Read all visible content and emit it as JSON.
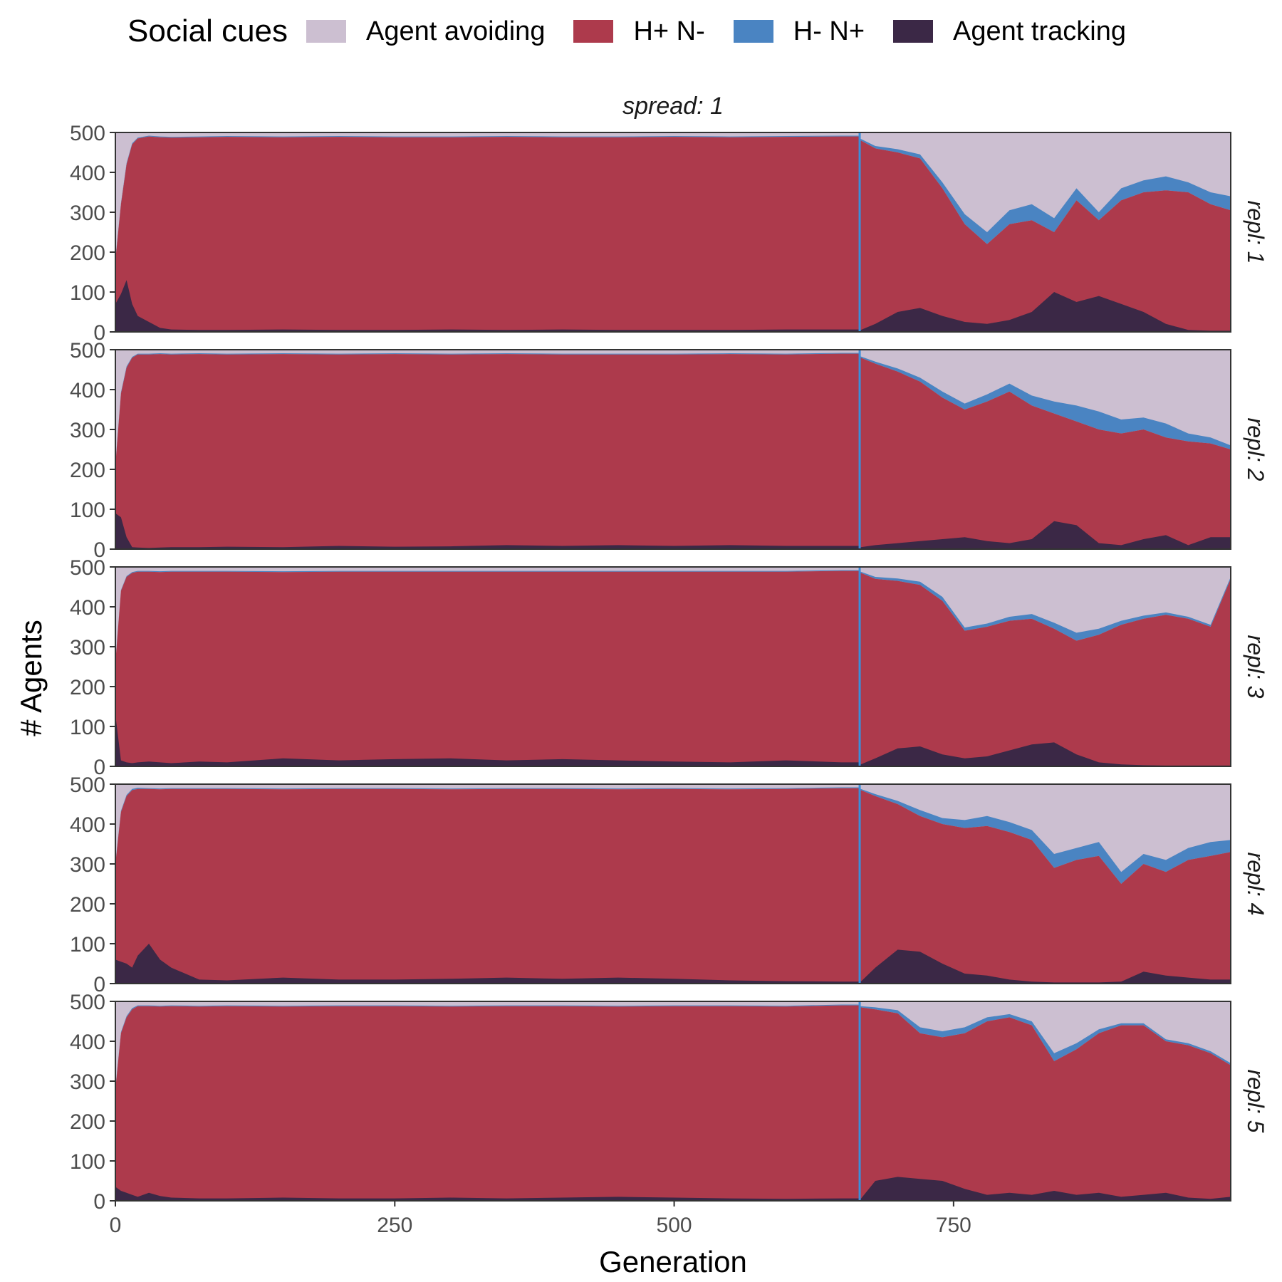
{
  "legend": {
    "title": "Social cues",
    "items": [
      {
        "label": "Agent avoiding",
        "color": "#ccbfd1"
      },
      {
        "label": "H+ N-",
        "color": "#ad3a4c"
      },
      {
        "label": "H- N+",
        "color": "#4a84c2"
      },
      {
        "label": "Agent tracking",
        "color": "#3b2846"
      }
    ]
  },
  "chart_data": {
    "type": "area",
    "stacked": true,
    "facet_title": "spread: 1",
    "xlabel": "Generation",
    "ylabel": "# Agents",
    "xlim": [
      0,
      998
    ],
    "ylim": [
      0,
      500
    ],
    "x_ticks": [
      0,
      250,
      500,
      750
    ],
    "y_ticks": [
      0,
      100,
      200,
      300,
      400,
      500
    ],
    "vline_x": 666,
    "vline_color": "#3b8fd9",
    "series_order": [
      "Agent tracking",
      "H- N+",
      "H+ N-",
      "Agent avoiding"
    ],
    "colors": {
      "Agent avoiding": "#ccbfd1",
      "H+ N-": "#ad3a4c",
      "H- N+": "#4a84c2",
      "Agent tracking": "#3b2846"
    },
    "panels": [
      {
        "label": "repl: 1",
        "x": [
          0,
          5,
          10,
          15,
          20,
          30,
          40,
          50,
          75,
          100,
          150,
          200,
          250,
          300,
          350,
          400,
          450,
          500,
          550,
          600,
          650,
          665,
          667,
          680,
          700,
          720,
          740,
          760,
          780,
          800,
          820,
          840,
          860,
          880,
          900,
          920,
          940,
          960,
          980,
          998
        ],
        "tracking": [
          70,
          95,
          130,
          70,
          40,
          25,
          10,
          6,
          5,
          5,
          6,
          5,
          5,
          6,
          5,
          6,
          5,
          5,
          5,
          6,
          6,
          6,
          5,
          20,
          50,
          60,
          40,
          25,
          20,
          30,
          50,
          100,
          75,
          90,
          70,
          50,
          20,
          5,
          3,
          3
        ],
        "hn": [
          180,
          320,
          420,
          470,
          485,
          490,
          488,
          487,
          488,
          489,
          488,
          489,
          488,
          488,
          489,
          488,
          488,
          489,
          488,
          489,
          490,
          490,
          480,
          460,
          450,
          435,
          360,
          270,
          220,
          270,
          280,
          250,
          330,
          280,
          330,
          350,
          355,
          350,
          320,
          305
        ],
        "hmnp": [
          3,
          3,
          3,
          3,
          2,
          2,
          2,
          2,
          2,
          2,
          2,
          2,
          2,
          2,
          2,
          2,
          2,
          2,
          2,
          2,
          2,
          2,
          4,
          6,
          8,
          10,
          15,
          25,
          30,
          35,
          40,
          35,
          30,
          20,
          30,
          30,
          35,
          25,
          30,
          35
        ]
      },
      {
        "label": "repl: 2",
        "x": [
          0,
          5,
          10,
          15,
          20,
          30,
          40,
          50,
          75,
          100,
          150,
          200,
          250,
          300,
          350,
          400,
          450,
          500,
          550,
          600,
          650,
          665,
          667,
          680,
          700,
          720,
          740,
          760,
          780,
          800,
          820,
          840,
          860,
          880,
          900,
          920,
          940,
          960,
          980,
          998
        ],
        "tracking": [
          90,
          80,
          30,
          5,
          4,
          3,
          4,
          5,
          5,
          6,
          5,
          8,
          6,
          7,
          10,
          8,
          10,
          8,
          10,
          8,
          8,
          8,
          5,
          10,
          15,
          20,
          25,
          30,
          20,
          15,
          25,
          70,
          60,
          15,
          10,
          25,
          35,
          10,
          30,
          30
        ],
        "hn": [
          210,
          390,
          455,
          480,
          488,
          488,
          489,
          488,
          489,
          488,
          489,
          488,
          489,
          488,
          489,
          488,
          488,
          488,
          489,
          488,
          490,
          490,
          480,
          465,
          445,
          420,
          380,
          350,
          370,
          395,
          360,
          340,
          320,
          300,
          290,
          300,
          280,
          270,
          265,
          250
        ],
        "hmnp": [
          3,
          3,
          3,
          2,
          2,
          2,
          2,
          2,
          2,
          2,
          2,
          2,
          2,
          2,
          2,
          2,
          2,
          2,
          2,
          2,
          2,
          2,
          3,
          5,
          8,
          10,
          15,
          15,
          18,
          20,
          25,
          30,
          40,
          45,
          35,
          30,
          35,
          20,
          15,
          10
        ]
      },
      {
        "label": "repl: 3",
        "x": [
          0,
          5,
          10,
          15,
          20,
          30,
          40,
          50,
          75,
          100,
          150,
          200,
          250,
          300,
          350,
          400,
          450,
          500,
          550,
          600,
          650,
          665,
          667,
          680,
          700,
          720,
          740,
          760,
          780,
          800,
          820,
          840,
          860,
          880,
          900,
          920,
          940,
          960,
          980,
          998
        ],
        "tracking": [
          130,
          15,
          10,
          8,
          10,
          12,
          10,
          8,
          12,
          10,
          20,
          15,
          18,
          20,
          15,
          18,
          15,
          12,
          10,
          15,
          10,
          10,
          5,
          20,
          45,
          50,
          30,
          20,
          25,
          40,
          55,
          60,
          30,
          10,
          5,
          3,
          2,
          2,
          2,
          2
        ],
        "hn": [
          260,
          440,
          475,
          485,
          488,
          488,
          487,
          488,
          488,
          488,
          487,
          488,
          488,
          488,
          488,
          488,
          488,
          488,
          488,
          488,
          490,
          490,
          485,
          470,
          465,
          455,
          415,
          340,
          350,
          365,
          370,
          345,
          315,
          330,
          355,
          370,
          380,
          370,
          350,
          470
        ],
        "hmnp": [
          2,
          2,
          2,
          2,
          2,
          2,
          2,
          2,
          2,
          2,
          2,
          2,
          2,
          2,
          2,
          2,
          2,
          2,
          2,
          2,
          2,
          2,
          3,
          5,
          6,
          8,
          10,
          8,
          8,
          10,
          12,
          15,
          20,
          15,
          10,
          8,
          6,
          5,
          5,
          5
        ]
      },
      {
        "label": "repl: 4",
        "x": [
          0,
          5,
          10,
          15,
          20,
          30,
          40,
          50,
          75,
          100,
          150,
          200,
          250,
          300,
          350,
          400,
          450,
          500,
          550,
          600,
          650,
          665,
          667,
          680,
          700,
          720,
          740,
          760,
          780,
          800,
          820,
          840,
          860,
          880,
          900,
          920,
          940,
          960,
          980,
          998
        ],
        "tracking": [
          60,
          55,
          50,
          40,
          70,
          100,
          60,
          40,
          10,
          8,
          15,
          10,
          10,
          12,
          15,
          12,
          15,
          12,
          8,
          6,
          5,
          5,
          5,
          40,
          85,
          80,
          50,
          25,
          20,
          10,
          5,
          3,
          3,
          3,
          5,
          30,
          20,
          15,
          10,
          10
        ],
        "hn": [
          300,
          430,
          470,
          485,
          488,
          488,
          487,
          488,
          488,
          488,
          487,
          488,
          488,
          487,
          488,
          488,
          487,
          488,
          487,
          488,
          490,
          490,
          485,
          470,
          450,
          420,
          400,
          390,
          395,
          380,
          360,
          290,
          310,
          320,
          250,
          300,
          280,
          310,
          320,
          330
        ],
        "hmnp": [
          3,
          3,
          3,
          3,
          3,
          2,
          2,
          2,
          2,
          2,
          2,
          2,
          2,
          2,
          2,
          2,
          2,
          2,
          2,
          2,
          2,
          2,
          3,
          5,
          8,
          15,
          15,
          20,
          25,
          25,
          25,
          35,
          30,
          35,
          30,
          25,
          30,
          30,
          35,
          30
        ]
      },
      {
        "label": "repl: 5",
        "x": [
          0,
          5,
          10,
          15,
          20,
          30,
          40,
          50,
          75,
          100,
          150,
          200,
          250,
          300,
          350,
          400,
          450,
          500,
          550,
          600,
          650,
          665,
          667,
          680,
          700,
          720,
          740,
          760,
          780,
          800,
          820,
          840,
          860,
          880,
          900,
          920,
          940,
          960,
          980,
          998
        ],
        "tracking": [
          35,
          25,
          20,
          15,
          10,
          20,
          12,
          8,
          6,
          6,
          8,
          6,
          6,
          8,
          6,
          8,
          10,
          8,
          6,
          5,
          6,
          6,
          5,
          50,
          60,
          55,
          50,
          30,
          15,
          20,
          15,
          25,
          15,
          20,
          10,
          15,
          20,
          8,
          5,
          10
        ],
        "hn": [
          280,
          420,
          460,
          480,
          488,
          488,
          487,
          488,
          487,
          488,
          487,
          488,
          488,
          487,
          488,
          488,
          487,
          488,
          488,
          487,
          490,
          490,
          485,
          480,
          470,
          420,
          410,
          420,
          450,
          460,
          440,
          350,
          380,
          420,
          440,
          440,
          400,
          390,
          370,
          340
        ],
        "hmnp": [
          3,
          3,
          3,
          3,
          2,
          2,
          2,
          2,
          2,
          2,
          2,
          2,
          2,
          2,
          2,
          2,
          2,
          2,
          2,
          2,
          2,
          2,
          3,
          5,
          8,
          15,
          15,
          15,
          10,
          8,
          10,
          20,
          15,
          10,
          5,
          5,
          5,
          5,
          5,
          5
        ]
      }
    ]
  }
}
